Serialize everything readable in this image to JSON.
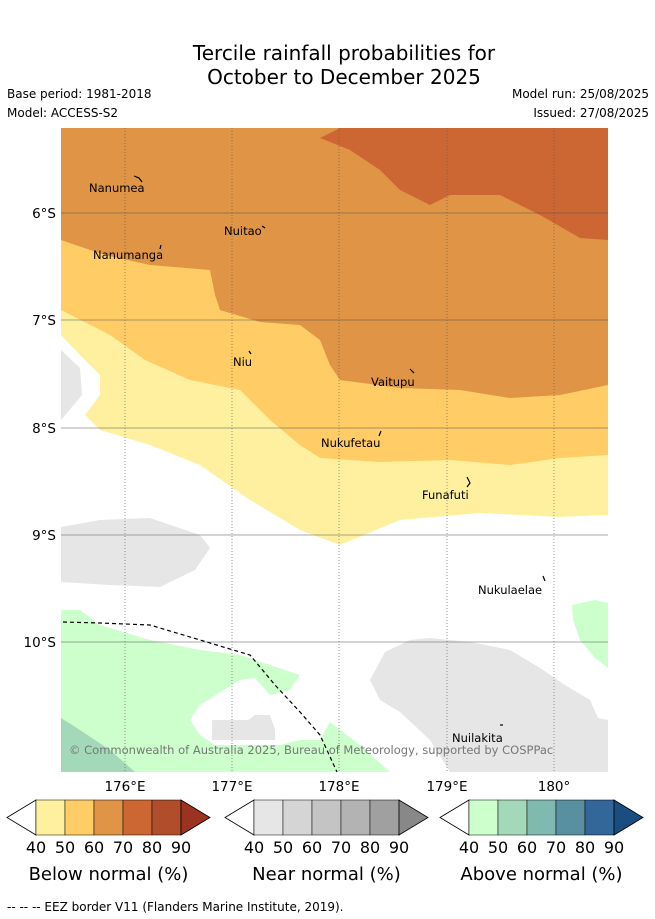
{
  "title_line1": "Tercile rainfall probabilities for",
  "title_line2": "October to December 2025",
  "base_period": "Base period: 1981-2018",
  "model": "Model: ACCESS-S2",
  "model_run": "Model run: 25/08/2025",
  "issued": "Issued: 27/08/2025",
  "map": {
    "lat_labels": [
      "6°S",
      "7°S",
      "8°S",
      "9°S",
      "10°S"
    ],
    "lon_labels": [
      "176°E",
      "177°E",
      "178°E",
      "179°E",
      "180°"
    ],
    "places": [
      "Nanumea",
      "Nuitao",
      "Nanumanga",
      "Niu",
      "Vaitupu",
      "Nukufetau",
      "Funafuti",
      "Nukulaelae",
      "Nuilakita"
    ],
    "copyright": "© Commonwealth of Australia 2025, Bureau of Meteorology, supported by COSPPac"
  },
  "colorbars": [
    {
      "title": "Below normal (%)",
      "ticks": [
        "40",
        "50",
        "60",
        "70",
        "80",
        "90"
      ],
      "colors": [
        "#ffffff",
        "#fff0a0",
        "#ffcc66",
        "#e09445",
        "#cc6633",
        "#b04d2a",
        "#9c3322"
      ]
    },
    {
      "title": "Near normal (%)",
      "ticks": [
        "40",
        "50",
        "60",
        "70",
        "80",
        "90"
      ],
      "colors": [
        "#ffffff",
        "#e6e6e6",
        "#d5d5d5",
        "#c4c4c4",
        "#b3b3b3",
        "#a0a0a0",
        "#888888"
      ]
    },
    {
      "title": "Above normal (%)",
      "ticks": [
        "40",
        "50",
        "60",
        "70",
        "80",
        "90"
      ],
      "colors": [
        "#ffffff",
        "#ccffcc",
        "#a3d9b8",
        "#80b9b0",
        "#5990a0",
        "#336699",
        "#1a4d80"
      ]
    }
  ],
  "footnote": "--  --  -- EEZ border V11 (Flanders Marine Institute, 2019)."
}
